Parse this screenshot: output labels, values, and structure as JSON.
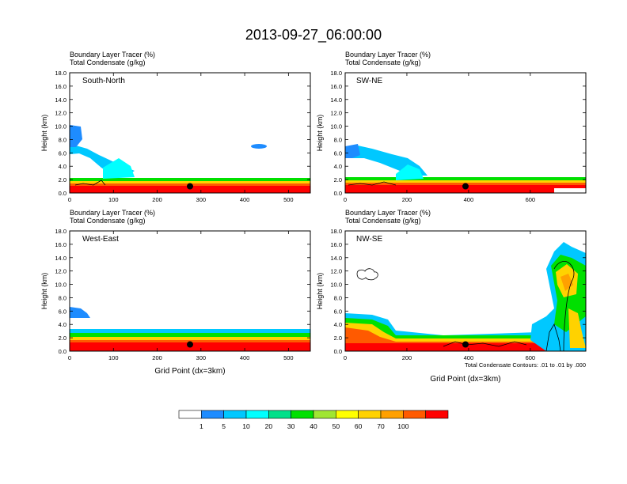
{
  "title": "2013-09-27_06:00:00",
  "contour_note": "Total Condensate Contours: .01 to .01 by .000",
  "xlabel": "Grid Point (dx=3km)",
  "colorbar": {
    "labels": [
      "1",
      "5",
      "10",
      "20",
      "30",
      "40",
      "50",
      "60",
      "70",
      "100"
    ],
    "colors": [
      "#ffffff",
      "#1e8cff",
      "#00c8ff",
      "#00ffff",
      "#00e08a",
      "#00e000",
      "#a0e632",
      "#ffff00",
      "#ffd200",
      "#ffa000",
      "#ff5a00",
      "#ff0000"
    ]
  },
  "chart_data": [
    {
      "type": "heatmap",
      "line1": "Boundary Layer Tracer   (%)",
      "line2": "Total Condensate   (g/kg)",
      "panel_label": "South-North",
      "ylabel": "Height (km)",
      "yticks": [
        "0.0",
        "2.0",
        "4.0",
        "6.0",
        "8.0",
        "10.0",
        "12.0",
        "14.0",
        "16.0",
        "18.0"
      ],
      "ylim": [
        0,
        18
      ],
      "xlim": [
        0,
        550
      ],
      "xticks": [
        0,
        100,
        200,
        300,
        400,
        500
      ],
      "xlabel": "",
      "pbl_top_km": [
        [
          0,
          1.8
        ],
        [
          80,
          2.0
        ],
        [
          120,
          1.6
        ],
        [
          200,
          1.4
        ],
        [
          300,
          1.6
        ],
        [
          400,
          1.8
        ],
        [
          550,
          1.9
        ]
      ],
      "marker": [
        275,
        1.0
      ]
    },
    {
      "type": "heatmap",
      "line1": "Boundary Layer Tracer   (%)",
      "line2": "Total Condensate   (g/kg)",
      "panel_label": "SW-NE",
      "ylabel": "Height (km)",
      "yticks": [
        "0.0",
        "2.0",
        "4.0",
        "6.0",
        "8.0",
        "10.0",
        "12.0",
        "14.0",
        "16.0",
        "18.0"
      ],
      "ylim": [
        0,
        18
      ],
      "xlim": [
        0,
        780
      ],
      "xticks": [
        0,
        200,
        400,
        600
      ],
      "xlabel": "",
      "pbl_top_km": [
        [
          0,
          1.9
        ],
        [
          150,
          1.6
        ],
        [
          300,
          1.5
        ],
        [
          500,
          1.6
        ],
        [
          780,
          1.8
        ]
      ],
      "marker": [
        390,
        1.0
      ]
    },
    {
      "type": "heatmap",
      "line1": "Boundary Layer Tracer   (%)",
      "line2": "Total Condensate   (g/kg)",
      "panel_label": "West-East",
      "ylabel": "Height (km)",
      "yticks": [
        "0.0",
        "2.0",
        "4.0",
        "6.0",
        "8.0",
        "10.0",
        "12.0",
        "14.0",
        "16.0",
        "18.0"
      ],
      "ylim": [
        0,
        18
      ],
      "xlim": [
        0,
        550
      ],
      "xticks": [
        0,
        100,
        200,
        300,
        400,
        500
      ],
      "xlabel": "Grid Point (dx=3km)",
      "pbl_top_km": [
        [
          0,
          2.2
        ],
        [
          150,
          1.8
        ],
        [
          300,
          1.8
        ],
        [
          450,
          2.0
        ],
        [
          550,
          2.2
        ]
      ],
      "marker": [
        275,
        1.0
      ]
    },
    {
      "type": "heatmap",
      "line1": "Boundary Layer Tracer   (%)",
      "line2": "Total Condensate   (g/kg)",
      "panel_label": "NW-SE",
      "ylabel": "Height (km)",
      "yticks": [
        "0.0",
        "2.0",
        "4.0",
        "6.0",
        "8.0",
        "10.0",
        "12.0",
        "14.0",
        "16.0",
        "18.0"
      ],
      "ylim": [
        0,
        18
      ],
      "xlim": [
        0,
        780
      ],
      "xticks": [
        0,
        200,
        400,
        600
      ],
      "xlabel": "Grid Point (dx=3km)",
      "pbl_top_km": [
        [
          0,
          3.0
        ],
        [
          150,
          2.0
        ],
        [
          300,
          1.5
        ],
        [
          500,
          1.6
        ],
        [
          780,
          2.0
        ]
      ],
      "marker": [
        390,
        1.0
      ]
    }
  ]
}
